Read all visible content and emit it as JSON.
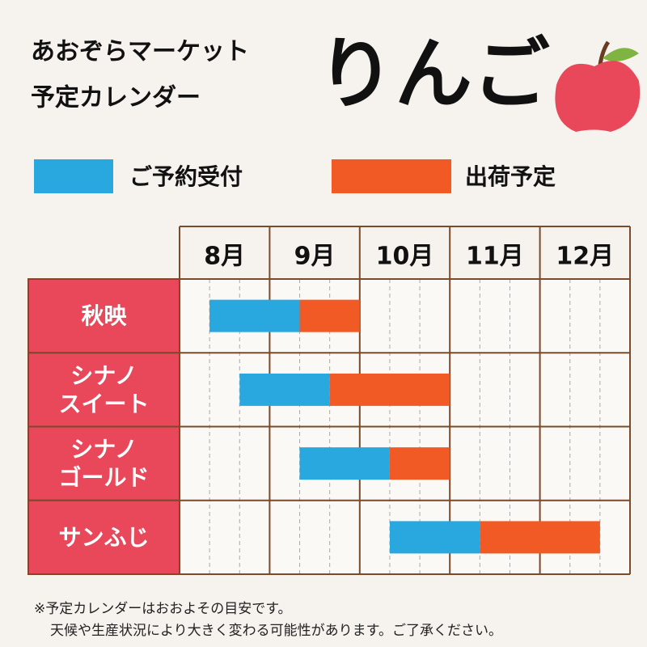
{
  "chart_data": {
    "type": "gantt",
    "title": "あおぞらマーケット",
    "subtitle": "予定カレンダー",
    "heading": "りんご",
    "categories": [
      "秋映",
      "シナノ\nスイート",
      "シナノ\nゴールド",
      "サンふじ"
    ],
    "series": [
      {
        "name": "ご予約受付",
        "color": "#29a8e0",
        "start": [
          8.333,
          8.667,
          9.333,
          10.333
        ],
        "end": [
          9.333,
          9.667,
          10.333,
          11.333
        ]
      },
      {
        "name": "出荷予定",
        "color": "#f15a24",
        "start": [
          9.333,
          9.667,
          10.333,
          11.333
        ],
        "end": [
          10,
          11,
          11,
          12.667
        ]
      }
    ],
    "xlim": [
      8,
      13
    ],
    "xticks": [
      {
        "value": 8,
        "label": "8月"
      },
      {
        "value": 9,
        "label": "9月"
      },
      {
        "value": 10,
        "label": "10月"
      },
      {
        "value": 11,
        "label": "11月"
      },
      {
        "value": 12,
        "label": "12月"
      }
    ],
    "grid_subdivisions": 3,
    "category_color": "#e8485a",
    "notes": [
      "※予定カレンダーはおおよその目安です。",
      "天候や生産状況により大きく変わる可能性があります。ご了承ください。"
    ]
  }
}
